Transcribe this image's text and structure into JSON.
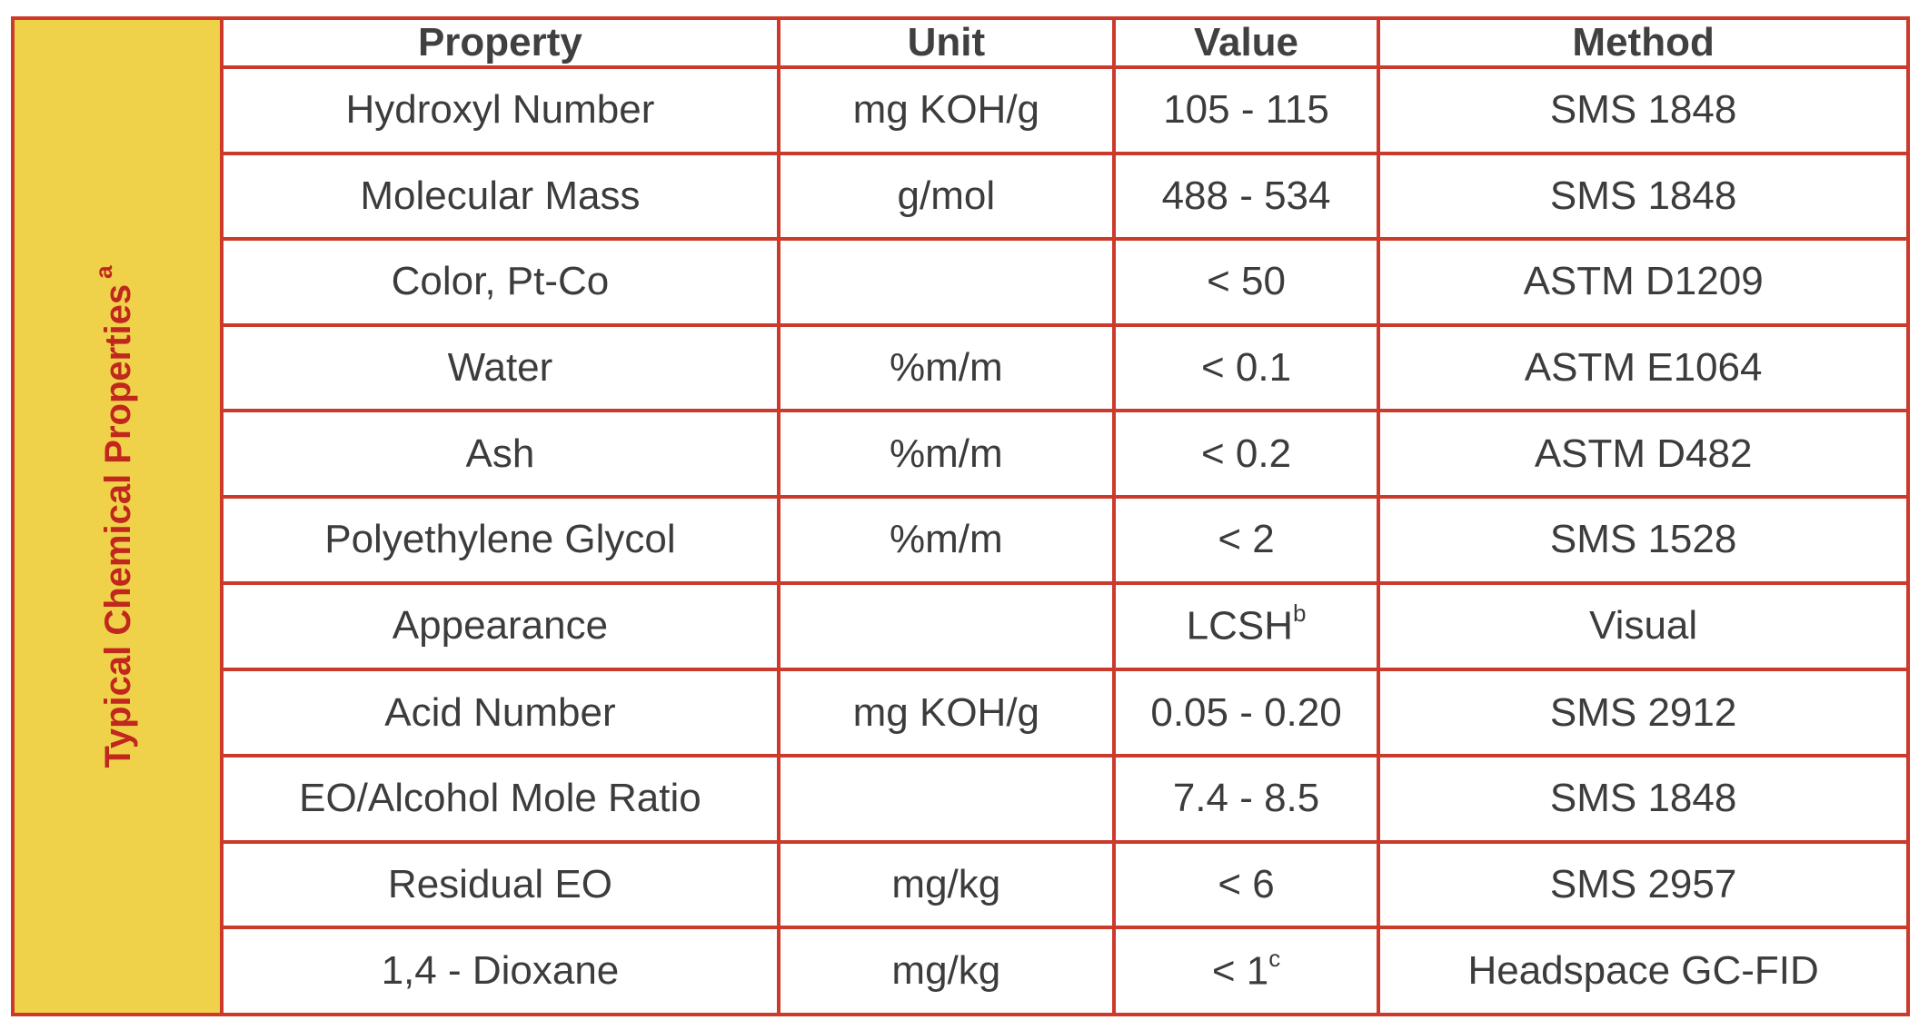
{
  "side_label": {
    "text": "Typical Chemical Properties",
    "footnote": "a"
  },
  "table": {
    "headers": {
      "property": "Property",
      "unit": "Unit",
      "value": "Value",
      "method": "Method"
    },
    "rows": [
      {
        "property": "Hydroxyl Number",
        "unit": "mg KOH/g",
        "value": "105 - 115",
        "value_sup": "",
        "method": "SMS 1848"
      },
      {
        "property": "Molecular Mass",
        "unit": "g/mol",
        "value": "488 - 534",
        "value_sup": "",
        "method": "SMS 1848"
      },
      {
        "property": "Color, Pt-Co",
        "unit": "",
        "value": "< 50",
        "value_sup": "",
        "method": "ASTM D1209"
      },
      {
        "property": "Water",
        "unit": "%m/m",
        "value": "< 0.1",
        "value_sup": "",
        "method": "ASTM E1064"
      },
      {
        "property": "Ash",
        "unit": "%m/m",
        "value": "< 0.2",
        "value_sup": "",
        "method": "ASTM D482"
      },
      {
        "property": "Polyethylene Glycol",
        "unit": "%m/m",
        "value": "< 2",
        "value_sup": "",
        "method": "SMS 1528"
      },
      {
        "property": "Appearance",
        "unit": "",
        "value": "LCSH",
        "value_sup": "b",
        "method": "Visual"
      },
      {
        "property": "Acid Number",
        "unit": "mg KOH/g",
        "value": "0.05 - 0.20",
        "value_sup": "",
        "method": "SMS 2912"
      },
      {
        "property": "EO/Alcohol Mole Ratio",
        "unit": "",
        "value": "7.4 - 8.5",
        "value_sup": "",
        "method": "SMS 1848"
      },
      {
        "property": "Residual EO",
        "unit": "mg/kg",
        "value": "< 6",
        "value_sup": "",
        "method": "SMS 2957"
      },
      {
        "property": "1,4 - Dioxane",
        "unit": "mg/kg",
        "value": "< 1",
        "value_sup": "c",
        "method": "Headspace GC-FID"
      }
    ]
  },
  "colors": {
    "border": "#cc3a2c",
    "side_fill": "#f0d24a",
    "side_text": "#c0271d",
    "body_text": "#3c3c3c"
  }
}
